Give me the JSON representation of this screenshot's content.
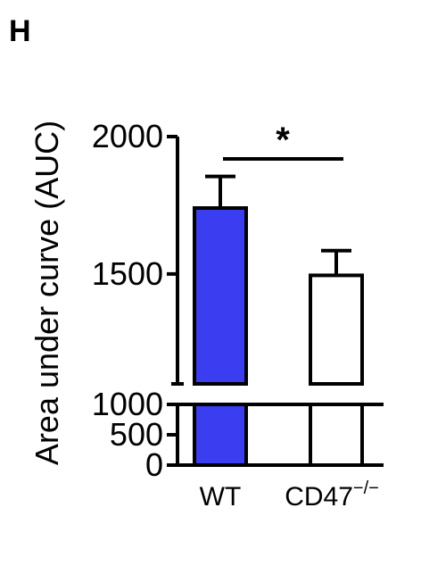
{
  "panel_label": "H",
  "chart_data": {
    "type": "bar",
    "categories": [
      "WT",
      "CD47"
    ],
    "category_superscripts": [
      "",
      "−/−"
    ],
    "values": [
      1740,
      1495
    ],
    "errors": [
      115,
      90
    ],
    "colors": [
      "#3a3ef0",
      "#ffffff"
    ],
    "ylabel": "Area under curve (AUC)",
    "broken_y_axis": true,
    "lower_segment": {
      "ylim": [
        0,
        1000
      ],
      "ticks": [
        0,
        500,
        1000
      ]
    },
    "upper_segment": {
      "ylim": [
        1100,
        2000
      ],
      "ticks": [
        1500,
        2000
      ]
    },
    "significance": {
      "between": [
        "WT",
        "CD47"
      ],
      "label": "*"
    },
    "grid": false,
    "legend": "none"
  }
}
